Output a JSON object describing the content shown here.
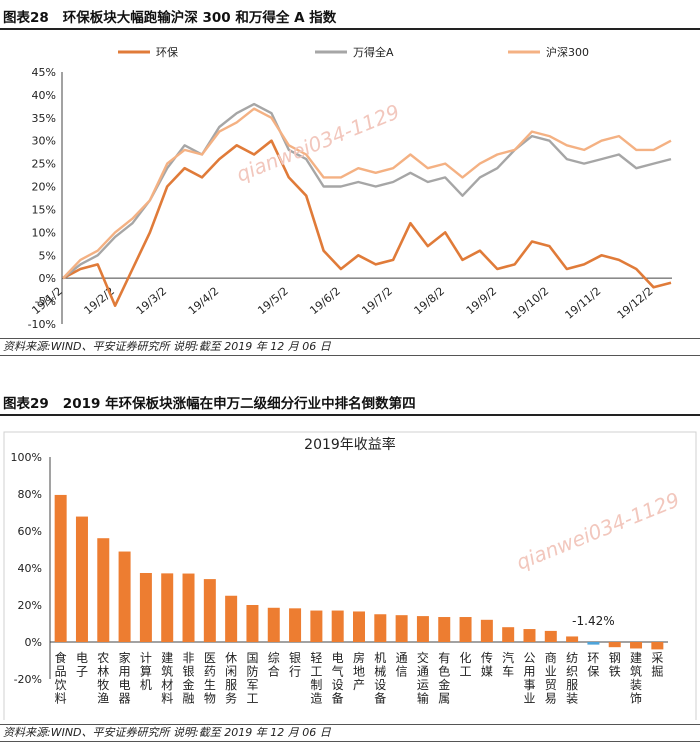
{
  "figure1": {
    "number": "图表28",
    "title": "环保板块大幅跑输沪深 300 和万得全 A 指数",
    "source": "资料来源:WIND、平安证券研究所 说明:截至 2019 年 12 月 06 日"
  },
  "figure2": {
    "number": "图表29",
    "title": "2019 年环保板块涨幅在申万二级细分行业中排名倒数第四",
    "source": "资料来源:WIND、平安证券研究所 说明:截至 2019 年 12 月 06 日"
  },
  "watermark": "qianwei034-1129",
  "colors": {
    "env": "#e07b39",
    "wind": "#a6a6a6",
    "csi": "#f4b183",
    "bar": "#ed7d31",
    "bar_highlight": "#4ea3d9"
  },
  "chart_data": [
    {
      "type": "line",
      "title": "",
      "legend_position": "top",
      "ylim": [
        -10,
        45
      ],
      "yticks": [
        "45%",
        "40%",
        "35%",
        "30%",
        "25%",
        "20%",
        "15%",
        "10%",
        "5%",
        "0%",
        "-5%",
        "-10%"
      ],
      "xticks": [
        "19/1/2",
        "19/2/2",
        "19/3/2",
        "19/4/2",
        "19/5/2",
        "19/6/2",
        "19/7/2",
        "19/8/2",
        "19/9/2",
        "19/10/2",
        "19/11/2",
        "19/12/2"
      ],
      "x": [
        "19/1/2",
        "19/1/12",
        "19/1/22",
        "19/2/2",
        "19/2/12",
        "19/2/22",
        "19/3/2",
        "19/3/12",
        "19/3/22",
        "19/4/2",
        "19/4/12",
        "19/4/19",
        "19/4/26",
        "19/5/2",
        "19/5/10",
        "19/5/20",
        "19/6/2",
        "19/6/12",
        "19/6/22",
        "19/7/2",
        "19/7/12",
        "19/7/22",
        "19/8/2",
        "19/8/12",
        "19/8/22",
        "19/9/2",
        "19/9/12",
        "19/9/22",
        "19/10/2",
        "19/10/12",
        "19/10/22",
        "19/11/2",
        "19/11/12",
        "19/11/22",
        "19/12/2",
        "19/12/6"
      ],
      "series": [
        {
          "name": "环保",
          "values": [
            0,
            2,
            3,
            -6,
            2,
            10,
            20,
            24,
            22,
            26,
            29,
            27,
            30,
            22,
            18,
            6,
            2,
            5,
            3,
            4,
            12,
            7,
            10,
            4,
            6,
            2,
            3,
            8,
            7,
            2,
            3,
            5,
            4,
            2,
            -2,
            -1
          ]
        },
        {
          "name": "万得全A",
          "values": [
            0,
            3,
            5,
            9,
            12,
            17,
            24,
            29,
            27,
            33,
            36,
            38,
            36,
            28,
            26,
            20,
            20,
            21,
            20,
            21,
            23,
            21,
            22,
            18,
            22,
            24,
            28,
            31,
            30,
            26,
            25,
            26,
            27,
            24,
            25,
            26
          ]
        },
        {
          "name": "沪深300",
          "values": [
            0,
            4,
            6,
            10,
            13,
            17,
            25,
            28,
            27,
            32,
            34,
            37,
            35,
            29,
            27,
            22,
            22,
            24,
            23,
            24,
            27,
            24,
            25,
            22,
            25,
            27,
            28,
            32,
            31,
            29,
            28,
            30,
            31,
            28,
            28,
            30
          ]
        }
      ]
    },
    {
      "type": "bar",
      "title": "2019年收益率",
      "ylim": [
        -20,
        100
      ],
      "yticks": [
        "100%",
        "80%",
        "60%",
        "40%",
        "20%",
        "0%",
        "-20%"
      ],
      "categories": [
        "食品饮料",
        "电子",
        "农林牧渔",
        "家用电器",
        "计算机",
        "建筑材料",
        "非银金融",
        "医药生物",
        "休闲服务",
        "国防军工",
        "综合",
        "银行",
        "轻工制造",
        "电气设备",
        "房地产",
        "机械设备",
        "通信",
        "交通运输",
        "有色金属",
        "化工",
        "传媒",
        "汽车",
        "公用事业",
        "商业贸易",
        "纺织服装",
        "环保",
        "钢铁",
        "建筑装饰",
        "采掘"
      ],
      "values": [
        79.5,
        67.8,
        56.1,
        48.9,
        37.3,
        37.1,
        37.0,
        34.0,
        25.0,
        20.0,
        18.5,
        18.2,
        17.0,
        17.0,
        16.5,
        15.0,
        14.5,
        14.0,
        13.5,
        13.5,
        12.0,
        8.0,
        7.0,
        6.0,
        3.0,
        -1.42,
        -2.8,
        -3.5,
        -4.0
      ],
      "highlight_index": 25,
      "annotation": "-1.42%"
    }
  ]
}
